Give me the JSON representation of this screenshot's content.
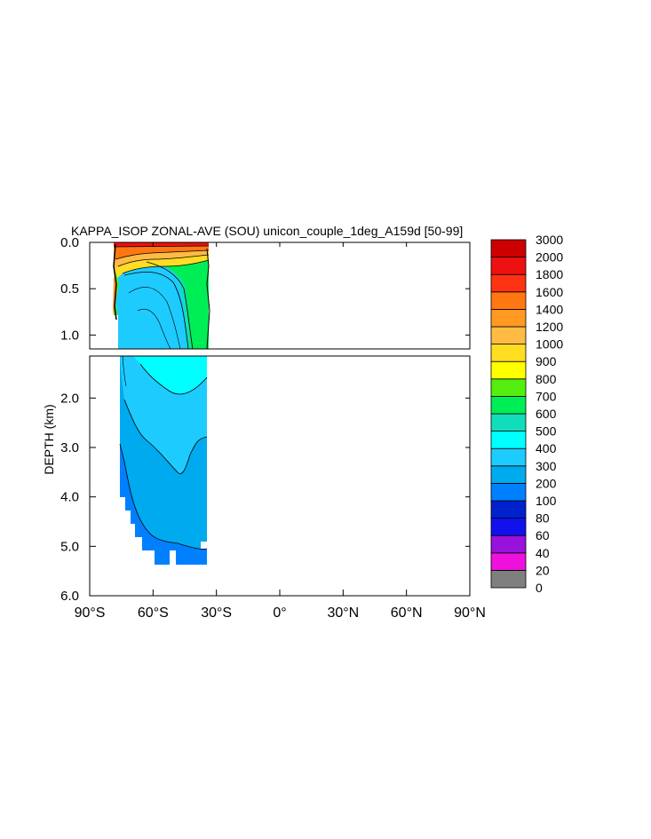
{
  "chart_data": {
    "type": "heatmap",
    "title": "KAPPA_ISOP ZONAL-AVE (SOU) unicon_couple_1deg_A159d [50-99]",
    "ylabel": "DEPTH (km)",
    "xlabel": "",
    "x_ticks": [
      {
        "value": -90,
        "label": "90°S"
      },
      {
        "value": -60,
        "label": "60°S"
      },
      {
        "value": -30,
        "label": "30°S"
      },
      {
        "value": 0,
        "label": "0°"
      },
      {
        "value": 30,
        "label": "30°N"
      },
      {
        "value": 60,
        "label": "60°N"
      },
      {
        "value": 90,
        "label": "90°N"
      }
    ],
    "xlim": [
      -90,
      90
    ],
    "upper_panel": {
      "ylim": [
        0,
        1.15
      ],
      "y_ticks": [
        {
          "value": 0,
          "label": "0.0"
        },
        {
          "value": 0.5,
          "label": "0.5"
        },
        {
          "value": 1.0,
          "label": "1.0"
        }
      ]
    },
    "lower_panel": {
      "ylim": [
        1.15,
        6.0
      ],
      "y_ticks": [
        {
          "value": 2,
          "label": "2.0"
        },
        {
          "value": 3,
          "label": "3.0"
        },
        {
          "value": 4,
          "label": "4.0"
        },
        {
          "value": 5,
          "label": "5.0"
        },
        {
          "value": 6,
          "label": "6.0"
        }
      ]
    },
    "data_extent": {
      "lat_min": -77,
      "lat_max": -34,
      "max_depth_km": 5.4
    },
    "legend": {
      "placement": "right",
      "levels": [
        "0",
        "20",
        "40",
        "60",
        "80",
        "100",
        "200",
        "300",
        "400",
        "500",
        "600",
        "700",
        "800",
        "900",
        "1000",
        "1200",
        "1400",
        "1600",
        "1800",
        "2000",
        "3000"
      ],
      "colors": [
        "#7f7f7f",
        "#cccccc",
        "#ee11dd",
        "#9911dd",
        "#1111ee",
        "#0022cc",
        "#0080ff",
        "#00aaee",
        "#1ecbff",
        "#00ffff",
        "#11ddbb",
        "#00ee55",
        "#55ee11",
        "#ffff00",
        "#ffdd22",
        "#ffbb44",
        "#ff9922",
        "#ff7711",
        "#ff3311",
        "#ee1111",
        "#cc0000"
      ]
    }
  }
}
